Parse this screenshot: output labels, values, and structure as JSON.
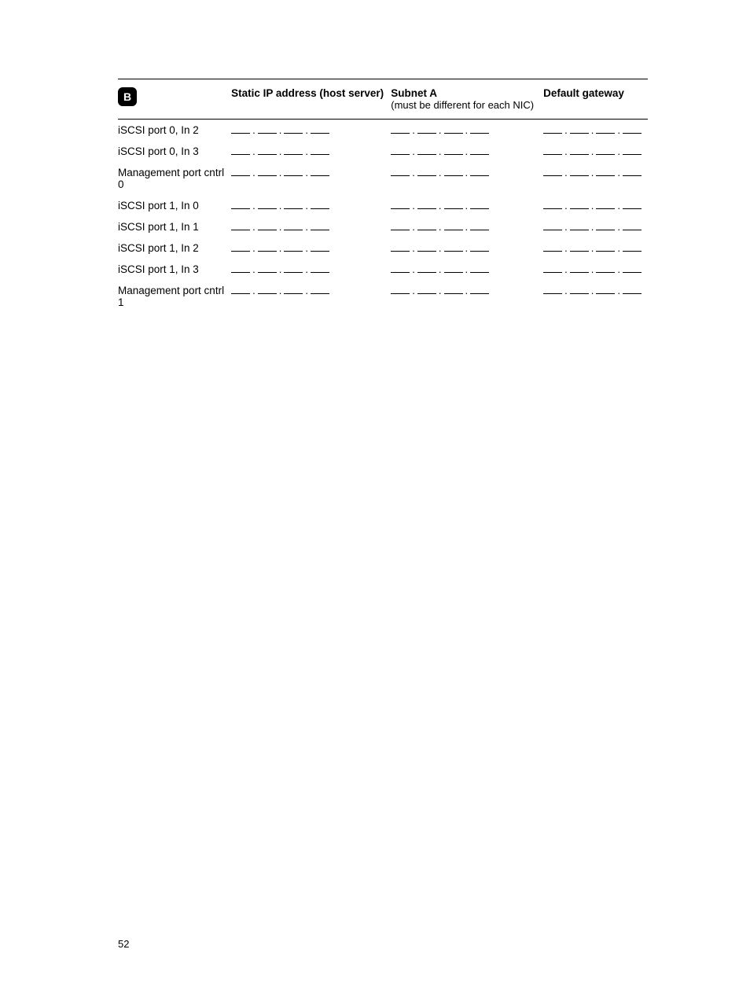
{
  "table": {
    "header": {
      "badge": "B",
      "col2": "Static IP address (host server)",
      "col3_line1": "Subnet A",
      "col3_line2": "(must be different for each NIC)",
      "col4": "Default gateway"
    },
    "rows": [
      {
        "label": "iSCSI port 0, In 2"
      },
      {
        "label": "iSCSI port 0, In 3"
      },
      {
        "label": "Management port cntrl 0"
      },
      {
        "label": "iSCSI port 1, In 0"
      },
      {
        "label": "iSCSI port 1, In 1"
      },
      {
        "label": "iSCSI port 1, In 2"
      },
      {
        "label": "iSCSI port 1, In 3"
      },
      {
        "label": "Management port cntrl 1"
      }
    ]
  },
  "page_number": "52"
}
